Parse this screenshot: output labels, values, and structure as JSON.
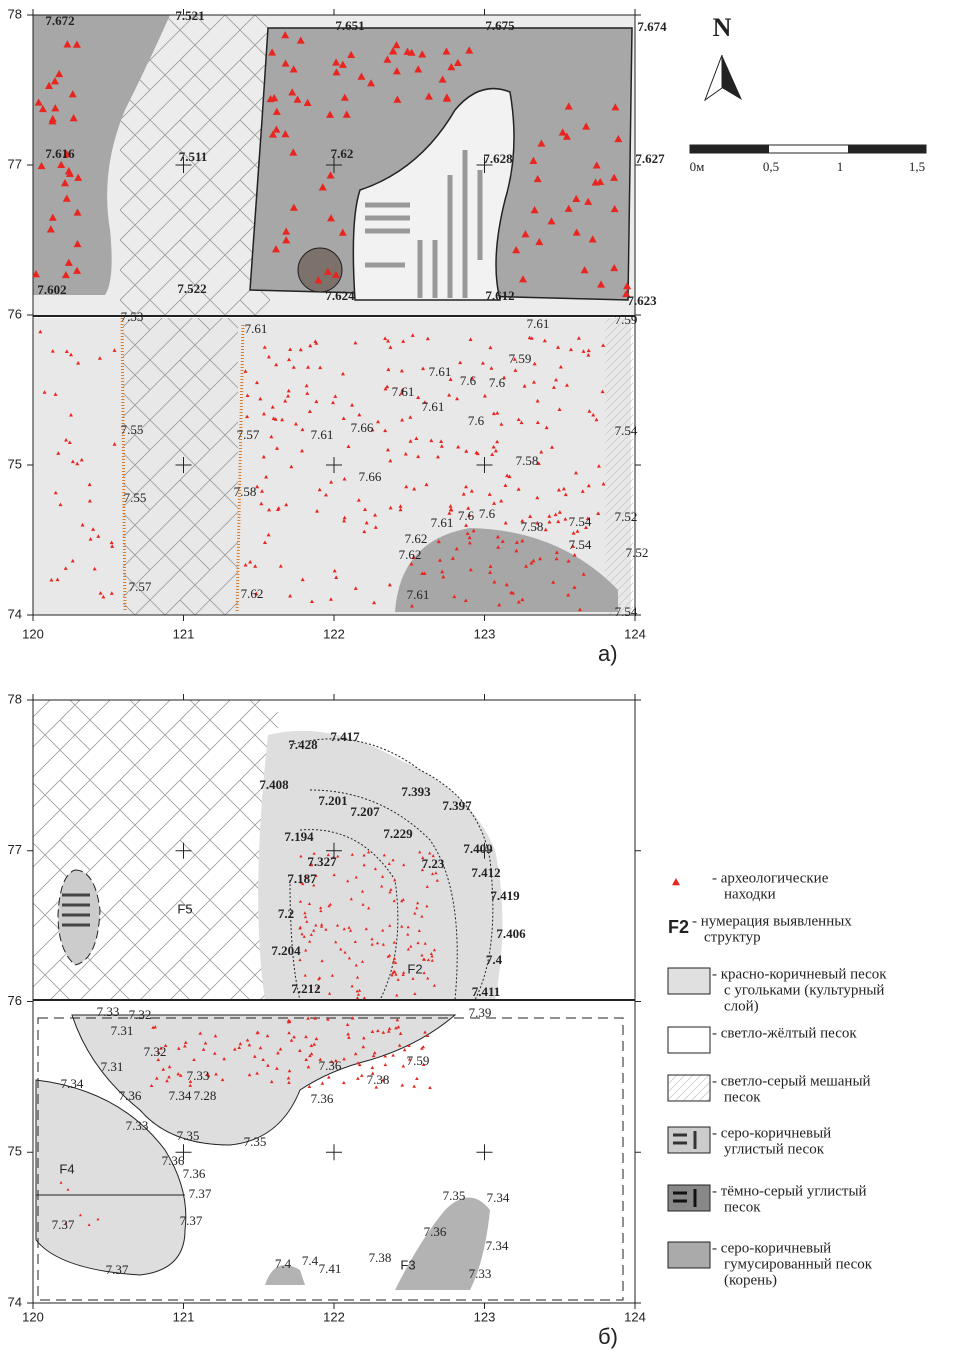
{
  "north": "N",
  "scale_bar": {
    "labels": [
      "0м",
      "0,5",
      "1",
      "1,5"
    ]
  },
  "panels": [
    {
      "label": "а)",
      "x_ticks": [
        120,
        121,
        122,
        123,
        124
      ],
      "y_ticks": [
        78,
        77,
        76,
        75,
        74
      ],
      "elevations": [
        "7.672",
        "7.521",
        "7.651",
        "7.675",
        "7.674",
        "7.616",
        "7.511",
        "7.62",
        "7.628",
        "7.627",
        "7.602",
        "7.522",
        "7.624",
        "7.612",
        "7.623",
        "7.53",
        "7.61",
        "7.61",
        "7.59",
        "7.59",
        "7.61",
        "7.6",
        "7.6",
        "7.61",
        "7.61",
        "7.6",
        "7.55",
        "7.57",
        "7.61",
        "7.66",
        "7.54",
        "7.58",
        "7.66",
        "7.55",
        "7.58",
        "7.61",
        "7.6",
        "7.6",
        "7.58",
        "7.54",
        "7.52",
        "7.62",
        "7.54",
        "7.62",
        "7.52",
        "7.57",
        "7.62",
        "7.61",
        "7.54"
      ],
      "structures": []
    },
    {
      "label": "б)",
      "x_ticks": [
        120,
        121,
        122,
        123,
        124
      ],
      "y_ticks": [
        78,
        77,
        76,
        75,
        74
      ],
      "elevations": [
        "7.428",
        "7.417",
        "7.408",
        "7.393",
        "7.201",
        "7.207",
        "7.397",
        "7.229",
        "7.194",
        "7.409",
        "7.327",
        "7.23",
        "7.412",
        "7.187",
        "7.419",
        "7.2",
        "7.406",
        "7.204",
        "7.4",
        "7.212",
        "7.411",
        "7.33",
        "7.32",
        "7.39",
        "7.31",
        "7.32",
        "7.31",
        "7.33",
        "7.34",
        "7.36",
        "7.38",
        "7.59",
        "7.36",
        "7.36",
        "7.34",
        "7.28",
        "7.33",
        "7.35",
        "7.35",
        "7.36",
        "7.36",
        "7.37",
        "7.35",
        "7.34",
        "7.37",
        "7.37",
        "7.36",
        "7.34",
        "7.37",
        "7.4",
        "7.4",
        "7.41",
        "7.38",
        "7.33"
      ],
      "structures": [
        "F5",
        "F2",
        "F4",
        "F3"
      ]
    }
  ],
  "legend": [
    {
      "lines": [
        "- археологические",
        "находки"
      ]
    },
    {
      "symbol": "F2",
      "lines": [
        "- нумерация выявленных",
        "структур"
      ]
    },
    {
      "lines": [
        "- красно-коричневый песок",
        "с угольками (культурный",
        "слой)"
      ]
    },
    {
      "lines": [
        "- светло-жёлтый песок"
      ]
    },
    {
      "lines": [
        "- светло-серый мешаный",
        "песок"
      ]
    },
    {
      "lines": [
        "- серо-коричневый",
        "углистый песок"
      ]
    },
    {
      "lines": [
        "- тёмно-серый углистый",
        "песок"
      ]
    },
    {
      "lines": [
        "- серо-коричневый",
        "гумусированный песок",
        "(корень)"
      ]
    }
  ]
}
